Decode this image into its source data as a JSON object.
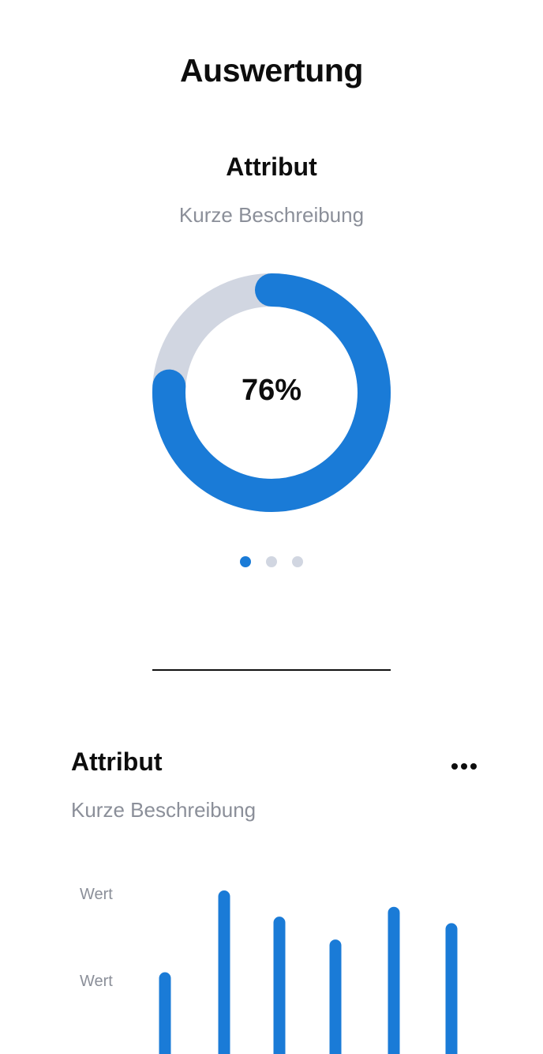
{
  "page": {
    "title": "Auswertung"
  },
  "top_card": {
    "attribute": "Attribut",
    "description": "Kurze Beschreibung",
    "donut": {
      "value_label": "76%",
      "fraction": 0.76,
      "colors": {
        "filled": "#1a7bd7",
        "track": "#d1d6e1"
      }
    },
    "pagination": {
      "count": 3,
      "active_index": 0
    }
  },
  "bottom_card": {
    "attribute": "Attribut",
    "description": "Kurze Beschreibung",
    "more_icon": "ellipsis-icon",
    "y_labels": [
      "Wert",
      "Wert"
    ]
  },
  "chart_data": {
    "type": "bar",
    "title": "Attribut",
    "subtitle": "Kurze Beschreibung",
    "values": [
      0.5,
      1.0,
      0.84,
      0.7,
      0.9,
      0.8
    ],
    "y_tick_labels": [
      "Wert",
      "Wert"
    ],
    "color": "#1a7bd7",
    "grid": false
  }
}
